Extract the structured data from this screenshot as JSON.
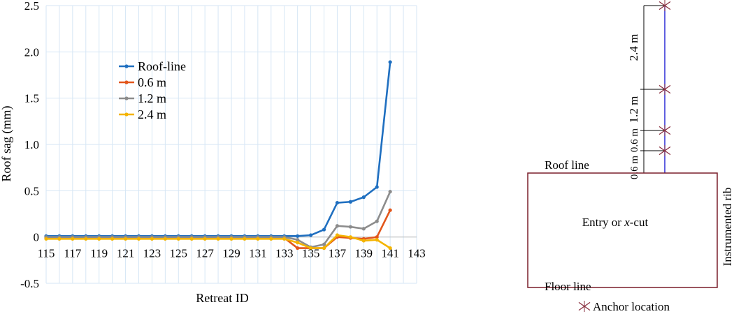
{
  "chart_data": {
    "type": "line",
    "xlabel": "Retreat ID",
    "ylabel": "Roof sag (mm)",
    "xlim": [
      115,
      143
    ],
    "ylim": [
      -0.5,
      2.5
    ],
    "x_ticks": [
      "115",
      "117",
      "119",
      "121",
      "123",
      "125",
      "127",
      "129",
      "131",
      "133",
      "135",
      "137",
      "139",
      "141",
      "143"
    ],
    "y_ticks": [
      "2.5",
      "2.0",
      "1.5",
      "1.0",
      "0.5",
      "0",
      "-0.5"
    ],
    "y_tick_values": [
      2.5,
      2.0,
      1.5,
      1.0,
      0.5,
      0,
      -0.5
    ],
    "grid": true,
    "legend_position": "upper-left",
    "x": [
      115,
      116,
      117,
      118,
      119,
      120,
      121,
      122,
      123,
      124,
      125,
      126,
      127,
      128,
      129,
      130,
      131,
      132,
      133,
      134,
      135,
      136,
      137,
      138,
      139,
      140,
      141
    ],
    "series": [
      {
        "name": "Roof-line",
        "color": "#1f6fc0",
        "values": [
          0.01,
          0.01,
          0.01,
          0.01,
          0.01,
          0.01,
          0.01,
          0.01,
          0.01,
          0.01,
          0.01,
          0.01,
          0.01,
          0.01,
          0.01,
          0.01,
          0.01,
          0.01,
          0.01,
          0.01,
          0.02,
          0.08,
          0.37,
          0.38,
          0.43,
          0.54,
          1.89
        ]
      },
      {
        "name": "0.6 m",
        "color": "#e2561b",
        "values": [
          -0.01,
          -0.01,
          -0.01,
          -0.01,
          -0.01,
          -0.01,
          -0.01,
          -0.01,
          -0.01,
          -0.01,
          -0.01,
          -0.01,
          -0.01,
          -0.01,
          -0.01,
          -0.01,
          -0.01,
          -0.01,
          -0.01,
          -0.12,
          -0.12,
          -0.12,
          0.0,
          -0.01,
          -0.02,
          0.0,
          0.29
        ]
      },
      {
        "name": "1.2 m",
        "color": "#8c8c8c",
        "values": [
          0.0,
          0.0,
          0.0,
          0.0,
          0.0,
          0.0,
          0.0,
          0.0,
          0.0,
          0.0,
          0.0,
          0.0,
          0.0,
          0.0,
          0.0,
          0.0,
          0.0,
          0.0,
          0.0,
          -0.03,
          -0.11,
          -0.08,
          0.12,
          0.11,
          0.09,
          0.17,
          0.49
        ]
      },
      {
        "name": "2.4 m",
        "color": "#f4b400",
        "values": [
          -0.02,
          -0.02,
          -0.02,
          -0.02,
          -0.02,
          -0.02,
          -0.02,
          -0.02,
          -0.02,
          -0.02,
          -0.02,
          -0.02,
          -0.02,
          -0.02,
          -0.02,
          -0.02,
          -0.02,
          -0.02,
          -0.02,
          -0.06,
          -0.12,
          -0.12,
          0.02,
          0.0,
          -0.04,
          -0.03,
          -0.12
        ]
      }
    ]
  },
  "diagram": {
    "roof_line_label": "Roof line",
    "floor_line_label": "Floor line",
    "entry_label_prefix": "Entry or ",
    "entry_label_italic": "x",
    "entry_label_suffix": "-cut",
    "rib_label": "Instrumented rib",
    "dim_top": "2.4 m",
    "dim_mid": "1.2 m",
    "dim_small_a": "0.6 m",
    "dim_small_b": "0.6 m",
    "legend_label": "Anchor location",
    "line_color": "#2b2bd6",
    "box_color": "#7a1f2a",
    "anchor_color": "#8a3040"
  }
}
